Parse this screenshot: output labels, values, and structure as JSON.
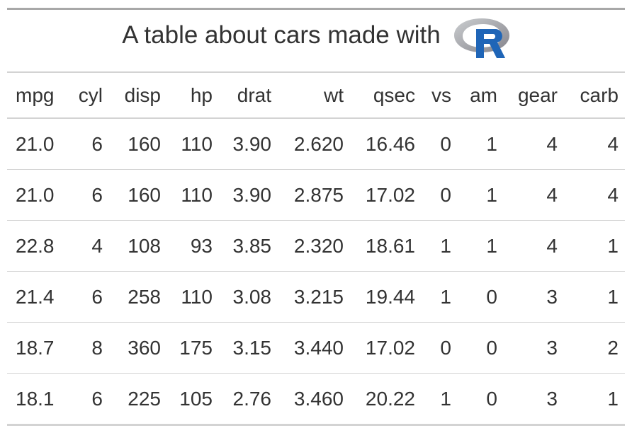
{
  "title": "A table about cars made with",
  "logo": {
    "text": "R",
    "ring_color": "#a0a0a5",
    "letter_color": "#1f65b7"
  },
  "columns": [
    "mpg",
    "cyl",
    "disp",
    "hp",
    "drat",
    "wt",
    "qsec",
    "vs",
    "am",
    "gear",
    "carb"
  ],
  "rows": [
    [
      "21.0",
      "6",
      "160",
      "110",
      "3.90",
      "2.620",
      "16.46",
      "0",
      "1",
      "4",
      "4"
    ],
    [
      "21.0",
      "6",
      "160",
      "110",
      "3.90",
      "2.875",
      "17.02",
      "0",
      "1",
      "4",
      "4"
    ],
    [
      "22.8",
      "4",
      "108",
      "93",
      "3.85",
      "2.320",
      "18.61",
      "1",
      "1",
      "4",
      "1"
    ],
    [
      "21.4",
      "6",
      "258",
      "110",
      "3.08",
      "3.215",
      "19.44",
      "1",
      "0",
      "3",
      "1"
    ],
    [
      "18.7",
      "8",
      "360",
      "175",
      "3.15",
      "3.440",
      "17.02",
      "0",
      "0",
      "3",
      "2"
    ],
    [
      "18.1",
      "6",
      "225",
      "105",
      "2.76",
      "3.460",
      "20.22",
      "1",
      "0",
      "3",
      "1"
    ]
  ]
}
